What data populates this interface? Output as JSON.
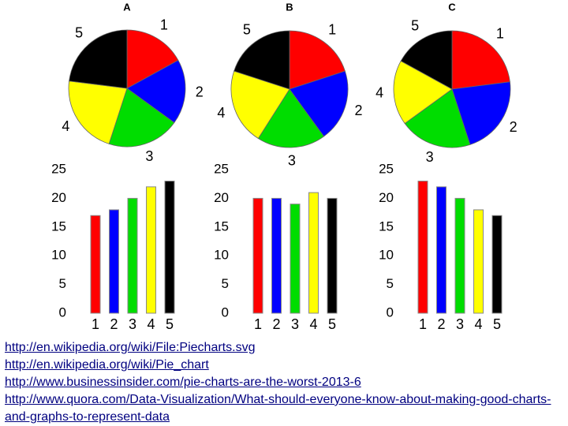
{
  "chart_data": [
    {
      "type": "pie",
      "title": "A",
      "categories": [
        "1",
        "2",
        "3",
        "4",
        "5"
      ],
      "values": [
        17,
        18,
        20,
        22,
        23
      ],
      "colors": [
        "#ff0000",
        "#0000ff",
        "#00dd00",
        "#ffff00",
        "#000000"
      ]
    },
    {
      "type": "pie",
      "title": "B",
      "categories": [
        "1",
        "2",
        "3",
        "4",
        "5"
      ],
      "values": [
        20,
        20,
        19,
        21,
        20
      ],
      "colors": [
        "#ff0000",
        "#0000ff",
        "#00dd00",
        "#ffff00",
        "#000000"
      ]
    },
    {
      "type": "pie",
      "title": "C",
      "categories": [
        "1",
        "2",
        "3",
        "4",
        "5"
      ],
      "values": [
        23,
        22,
        20,
        18,
        17
      ],
      "colors": [
        "#ff0000",
        "#0000ff",
        "#00dd00",
        "#ffff00",
        "#000000"
      ]
    },
    {
      "type": "bar",
      "categories": [
        "1",
        "2",
        "3",
        "4",
        "5"
      ],
      "values": [
        17,
        18,
        20,
        22,
        23
      ],
      "colors": [
        "#ff0000",
        "#0000ff",
        "#00dd00",
        "#ffff00",
        "#000000"
      ],
      "ylim": [
        0,
        25
      ],
      "yticks": [
        0,
        5,
        10,
        15,
        20,
        25
      ]
    },
    {
      "type": "bar",
      "categories": [
        "1",
        "2",
        "3",
        "4",
        "5"
      ],
      "values": [
        20,
        20,
        19,
        21,
        20
      ],
      "colors": [
        "#ff0000",
        "#0000ff",
        "#00dd00",
        "#ffff00",
        "#000000"
      ],
      "ylim": [
        0,
        25
      ],
      "yticks": [
        0,
        5,
        10,
        15,
        20,
        25
      ]
    },
    {
      "type": "bar",
      "categories": [
        "1",
        "2",
        "3",
        "4",
        "5"
      ],
      "values": [
        23,
        22,
        20,
        18,
        17
      ],
      "colors": [
        "#ff0000",
        "#0000ff",
        "#00dd00",
        "#ffff00",
        "#000000"
      ],
      "ylim": [
        0,
        25
      ],
      "yticks": [
        0,
        5,
        10,
        15,
        20,
        25
      ]
    }
  ],
  "links": [
    "http://en.wikipedia.org/wiki/File:Piecharts.svg",
    "http://en.wikipedia.org/wiki/Pie_chart",
    "http://www.businessinsider.com/pie-charts-are-the-worst-2013-6",
    "http://www.quora.com/Data-Visualization/What-should-everyone-know-about-making-good-charts-and-graphs-to-represent-data"
  ]
}
